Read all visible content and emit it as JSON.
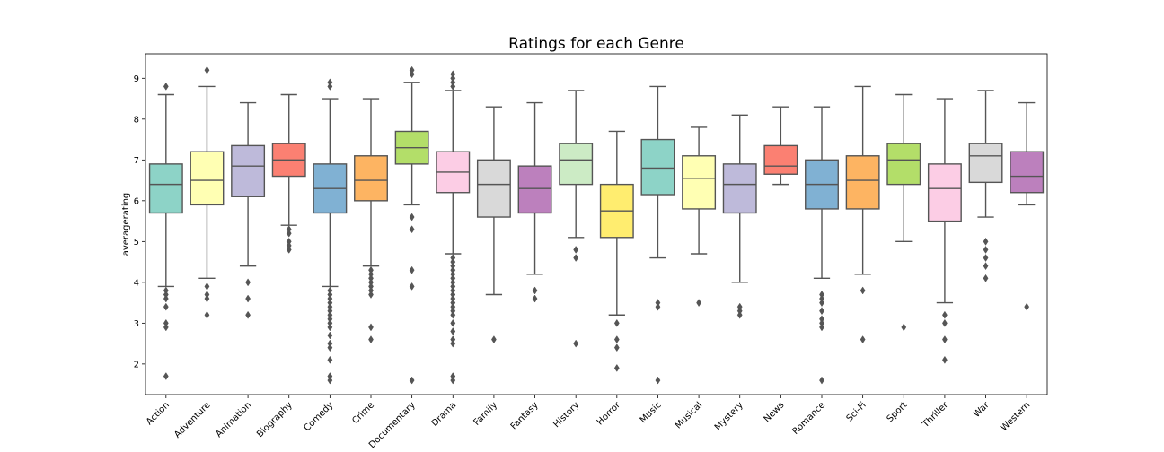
{
  "chart_data": {
    "type": "box",
    "title": "Ratings for each Genre",
    "xlabel": "",
    "ylabel": "averagerating",
    "ylim": [
      1.25,
      9.6
    ],
    "yticks": [
      2,
      3,
      4,
      5,
      6,
      7,
      8,
      9
    ],
    "grid": false,
    "stroke_color": "#555555",
    "categories": [
      "Action",
      "Adventure",
      "Animation",
      "Biography",
      "Comedy",
      "Crime",
      "Documentary",
      "Drama",
      "Family",
      "Fantasy",
      "History",
      "Horror",
      "Music",
      "Musical",
      "Mystery",
      "News",
      "Romance",
      "Sci-Fi",
      "Sport",
      "Thriller",
      "War",
      "Western"
    ],
    "colors": [
      "#8dd3c7",
      "#ffffb3",
      "#bebada",
      "#fb8072",
      "#80b1d3",
      "#fdb462",
      "#b3de69",
      "#fccde5",
      "#d9d9d9",
      "#bc80bd",
      "#ccebc5",
      "#ffed6f",
      "#8dd3c7",
      "#ffffb3",
      "#bebada",
      "#fb8072",
      "#80b1d3",
      "#fdb462",
      "#b3de69",
      "#fccde5",
      "#d9d9d9",
      "#bc80bd"
    ],
    "boxes": [
      {
        "whislo": 3.9,
        "q1": 5.7,
        "med": 6.4,
        "q3": 6.9,
        "whishi": 8.6,
        "fliers": [
          8.8,
          3.8,
          3.7,
          3.6,
          3.4,
          3.0,
          2.9,
          1.7
        ]
      },
      {
        "whislo": 4.1,
        "q1": 5.9,
        "med": 6.5,
        "q3": 7.2,
        "whishi": 8.8,
        "fliers": [
          9.2,
          3.9,
          3.7,
          3.6,
          3.2
        ]
      },
      {
        "whislo": 4.4,
        "q1": 6.1,
        "med": 6.85,
        "q3": 7.35,
        "whishi": 8.4,
        "fliers": [
          4.0,
          3.6,
          3.2
        ]
      },
      {
        "whislo": 5.4,
        "q1": 6.6,
        "med": 7.0,
        "q3": 7.4,
        "whishi": 8.6,
        "fliers": [
          5.3,
          5.2,
          5.0,
          4.9,
          4.8
        ]
      },
      {
        "whislo": 3.9,
        "q1": 5.7,
        "med": 6.3,
        "q3": 6.9,
        "whishi": 8.5,
        "fliers": [
          8.9,
          8.8,
          3.8,
          3.7,
          3.6,
          3.5,
          3.4,
          3.3,
          3.2,
          3.1,
          3.0,
          2.9,
          2.7,
          2.5,
          2.4,
          2.1,
          1.7,
          1.6
        ]
      },
      {
        "whislo": 4.4,
        "q1": 6.0,
        "med": 6.5,
        "q3": 7.1,
        "whishi": 8.5,
        "fliers": [
          4.3,
          4.2,
          4.1,
          4.0,
          3.9,
          3.8,
          3.7,
          2.9,
          2.6
        ]
      },
      {
        "whislo": 5.9,
        "q1": 6.9,
        "med": 7.3,
        "q3": 7.7,
        "whishi": 8.9,
        "fliers": [
          9.2,
          9.1,
          5.6,
          5.3,
          4.3,
          3.9,
          1.6
        ]
      },
      {
        "whislo": 4.7,
        "q1": 6.2,
        "med": 6.7,
        "q3": 7.2,
        "whishi": 8.7,
        "fliers": [
          9.1,
          9.0,
          8.9,
          8.8,
          4.6,
          4.5,
          4.4,
          4.3,
          4.2,
          4.1,
          4.0,
          3.9,
          3.8,
          3.7,
          3.6,
          3.5,
          3.4,
          3.3,
          3.2,
          3.0,
          2.8,
          2.6,
          2.5,
          1.7,
          1.6
        ]
      },
      {
        "whislo": 3.7,
        "q1": 5.6,
        "med": 6.4,
        "q3": 7.0,
        "whishi": 8.3,
        "fliers": [
          2.6
        ]
      },
      {
        "whislo": 4.2,
        "q1": 5.7,
        "med": 6.3,
        "q3": 6.85,
        "whishi": 8.4,
        "fliers": [
          3.8,
          3.6
        ]
      },
      {
        "whislo": 5.1,
        "q1": 6.4,
        "med": 7.0,
        "q3": 7.4,
        "whishi": 8.7,
        "fliers": [
          4.8,
          4.6,
          2.5
        ]
      },
      {
        "whislo": 3.2,
        "q1": 5.1,
        "med": 5.75,
        "q3": 6.4,
        "whishi": 7.7,
        "fliers": [
          3.0,
          2.6,
          2.4,
          1.9
        ]
      },
      {
        "whislo": 4.6,
        "q1": 6.15,
        "med": 6.8,
        "q3": 7.5,
        "whishi": 8.8,
        "fliers": [
          3.5,
          3.4,
          1.6
        ]
      },
      {
        "whislo": 4.7,
        "q1": 5.8,
        "med": 6.55,
        "q3": 7.1,
        "whishi": 7.8,
        "fliers": [
          3.5
        ]
      },
      {
        "whislo": 4.0,
        "q1": 5.7,
        "med": 6.4,
        "q3": 6.9,
        "whishi": 8.1,
        "fliers": [
          3.4,
          3.3,
          3.2
        ]
      },
      {
        "whislo": 6.4,
        "q1": 6.65,
        "med": 6.85,
        "q3": 7.35,
        "whishi": 8.3,
        "fliers": []
      },
      {
        "whislo": 4.1,
        "q1": 5.8,
        "med": 6.4,
        "q3": 7.0,
        "whishi": 8.3,
        "fliers": [
          3.7,
          3.6,
          3.5,
          3.3,
          3.1,
          3.0,
          2.9,
          1.6
        ]
      },
      {
        "whislo": 4.2,
        "q1": 5.8,
        "med": 6.5,
        "q3": 7.1,
        "whishi": 8.8,
        "fliers": [
          3.8,
          2.6
        ]
      },
      {
        "whislo": 5.0,
        "q1": 6.4,
        "med": 7.0,
        "q3": 7.4,
        "whishi": 8.6,
        "fliers": [
          2.9
        ]
      },
      {
        "whislo": 3.5,
        "q1": 5.5,
        "med": 6.3,
        "q3": 6.9,
        "whishi": 8.5,
        "fliers": [
          3.2,
          3.0,
          2.6,
          2.1
        ]
      },
      {
        "whislo": 5.6,
        "q1": 6.45,
        "med": 7.1,
        "q3": 7.4,
        "whishi": 8.7,
        "fliers": [
          5.0,
          4.8,
          4.6,
          4.4,
          4.1
        ]
      },
      {
        "whislo": 5.9,
        "q1": 6.2,
        "med": 6.6,
        "q3": 7.2,
        "whishi": 8.4,
        "fliers": [
          3.4
        ]
      }
    ]
  }
}
